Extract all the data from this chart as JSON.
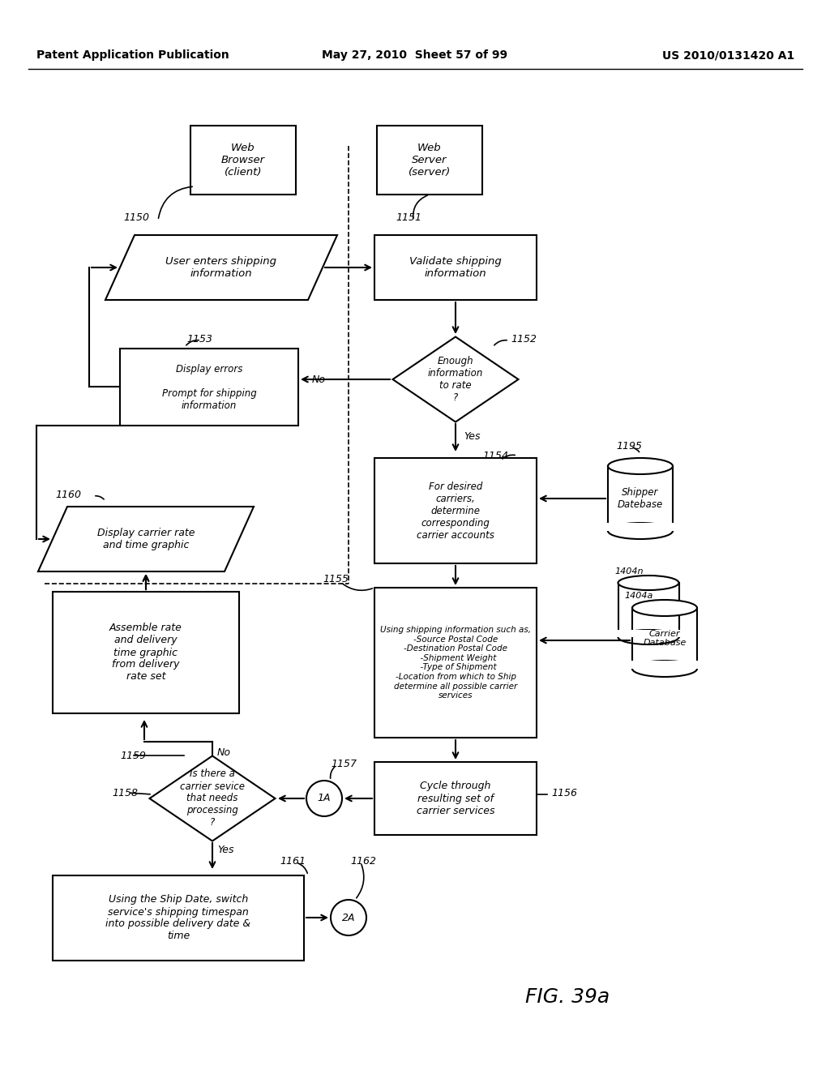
{
  "header_left": "Patent Application Publication",
  "header_mid": "May 27, 2010  Sheet 57 of 99",
  "header_right": "US 2010/0131420 A1",
  "fig_label": "FIG. 39a",
  "bg": "#ffffff",
  "lc": "#000000",
  "tc": "#000000"
}
